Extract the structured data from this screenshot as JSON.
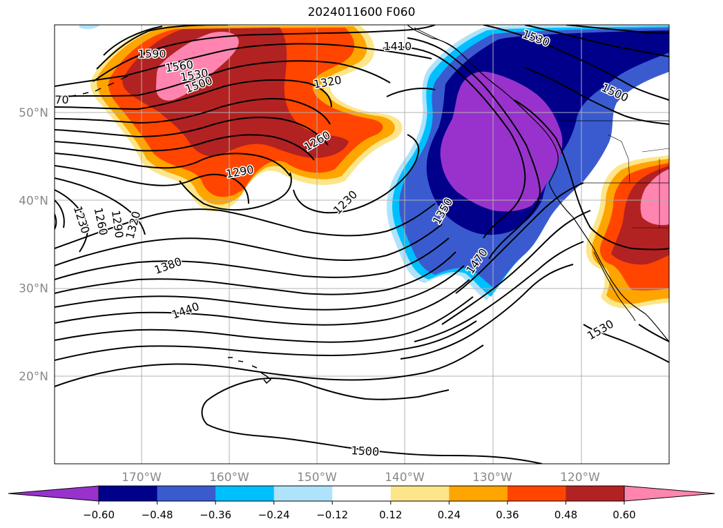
{
  "title": "2024011600 F060",
  "map": {
    "lat_labels": [
      {
        "lat": 50,
        "label": "50°N"
      },
      {
        "lat": 40,
        "label": "40°N"
      },
      {
        "lat": 30,
        "label": "30°N"
      },
      {
        "lat": 20,
        "label": "20°N"
      }
    ],
    "lon_labels": [
      {
        "lon": -170,
        "label": "170°W"
      },
      {
        "lon": -160,
        "label": "160°W"
      },
      {
        "lon": -150,
        "label": "150°W"
      },
      {
        "lon": -140,
        "label": "140°W"
      },
      {
        "lon": -130,
        "label": "130°W"
      },
      {
        "lon": -120,
        "label": "120°W"
      }
    ],
    "label_color": "#888888"
  },
  "colorbar": {
    "colors": [
      "#9932cc",
      "#00008b",
      "#3a5bd0",
      "#00bfff",
      "#aee3fb",
      "#ffffff",
      "#fde68a",
      "#ffa500",
      "#ff4500",
      "#b22222",
      "#ff85b0"
    ],
    "ticks": [
      "−0.60",
      "−0.48",
      "−0.36",
      "−0.24",
      "−0.12",
      "0.12",
      "0.24",
      "0.36",
      "0.48",
      "0.60"
    ]
  },
  "contour_labels": [
    {
      "text": "1590",
      "lon": -168.8,
      "lat": 56.7,
      "rot": 0
    },
    {
      "text": "1560",
      "lon": -165.7,
      "lat": 55.3,
      "rot": -8
    },
    {
      "text": "1530",
      "lon": -164.0,
      "lat": 54.3,
      "rot": -10
    },
    {
      "text": "1500",
      "lon": -163.5,
      "lat": 53.2,
      "rot": -20
    },
    {
      "text": "1410",
      "lon": -140.8,
      "lat": 57.6,
      "rot": 0
    },
    {
      "text": "1320",
      "lon": -148.8,
      "lat": 53.5,
      "rot": -10
    },
    {
      "text": "1260",
      "lon": -150.0,
      "lat": 46.8,
      "rot": -30
    },
    {
      "text": "1290",
      "lon": -158.8,
      "lat": 43.3,
      "rot": -10
    },
    {
      "text": "1230",
      "lon": -146.8,
      "lat": 39.8,
      "rot": -45
    },
    {
      "text": "1530",
      "lon": -125.0,
      "lat": 58.5,
      "rot": 20
    },
    {
      "text": "1500",
      "lon": -116.0,
      "lat": 52.3,
      "rot": 25
    },
    {
      "text": "1350",
      "lon": -135.7,
      "lat": 38.8,
      "rot": -60
    },
    {
      "text": "1470",
      "lon": -131.8,
      "lat": 33.1,
      "rot": -55
    },
    {
      "text": "1380",
      "lon": -167.0,
      "lat": 32.6,
      "rot": -20
    },
    {
      "text": "1440",
      "lon": -165.0,
      "lat": 27.5,
      "rot": -20
    },
    {
      "text": "1230",
      "lon": -176.8,
      "lat": 37.8,
      "rot": 72
    },
    {
      "text": "1260",
      "lon": -174.6,
      "lat": 37.6,
      "rot": 78
    },
    {
      "text": "1290",
      "lon": -172.7,
      "lat": 37.3,
      "rot": 82
    },
    {
      "text": "1320",
      "lon": -171.0,
      "lat": 37.2,
      "rot": -75
    },
    {
      "text": "1530",
      "lon": -117.7,
      "lat": 25.3,
      "rot": -30
    },
    {
      "text": "1500",
      "lon": -144.5,
      "lat": 11.5,
      "rot": 3
    },
    {
      "text": "70",
      "lon": -179.1,
      "lat": 51.5,
      "rot": 0
    }
  ]
}
